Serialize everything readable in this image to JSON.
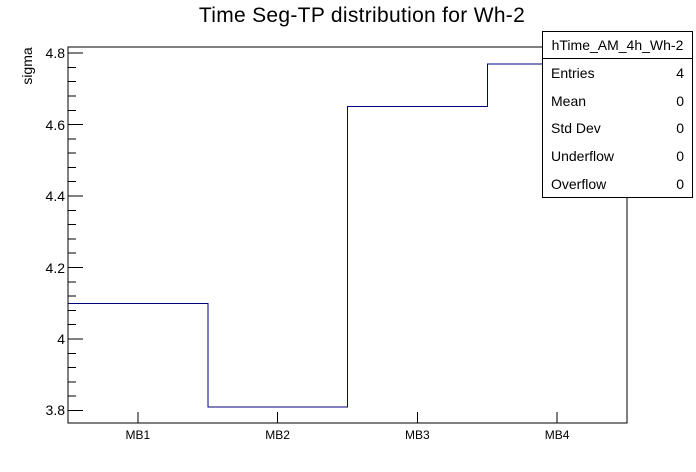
{
  "chart_data": {
    "type": "bar",
    "draw_style": "root-step-histogram-outline",
    "title": "Time Seg-TP distribution for Wh-2",
    "ylabel": "sigma",
    "xlabel": "",
    "categories": [
      "MB1",
      "MB2",
      "MB3",
      "MB4"
    ],
    "values": [
      4.1,
      3.81,
      4.65,
      4.77
    ],
    "ylim": [
      3.765,
      4.817
    ],
    "y_major_ticks": {
      "values": [
        3.8,
        4.0,
        4.2,
        4.4,
        4.6,
        4.8
      ],
      "labels": [
        "3.8",
        "4",
        "4.2",
        "4.4",
        "4.6",
        "4.8"
      ]
    },
    "y_minor_step": 0.04,
    "grid": false,
    "legend_position": "none",
    "line_color": "#000080",
    "frame_color": "#000000",
    "background_color": "#ffffff"
  },
  "stats_box": {
    "header": "hTime_AM_4h_Wh-2",
    "rows": [
      {
        "label": "Entries",
        "value": "4"
      },
      {
        "label": "Mean",
        "value": "0"
      },
      {
        "label": "Std Dev",
        "value": "0"
      },
      {
        "label": "Underflow",
        "value": "0"
      },
      {
        "label": "Overflow",
        "value": "0"
      }
    ]
  }
}
